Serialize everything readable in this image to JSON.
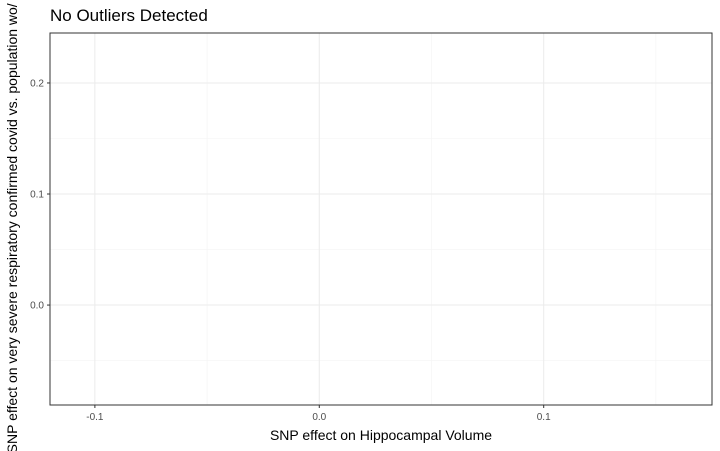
{
  "chart_data": {
    "type": "scatter",
    "title": "No Outliers Detected",
    "xlabel": "SNP effect on Hippocampal Volume",
    "ylabel": "SNP effect on very severe respiratory confirmed covid vs. population wo/ Ur",
    "xlim": [
      -0.12,
      0.175
    ],
    "ylim": [
      -0.09,
      0.245
    ],
    "x_ticks": [
      -0.1,
      0.0,
      0.1
    ],
    "x_tick_labels": [
      "-0.1",
      "0.0",
      "0.1"
    ],
    "y_ticks": [
      0.0,
      0.1,
      0.2
    ],
    "y_tick_labels": [
      "0.0",
      "0.1",
      "0.2"
    ],
    "grid": true,
    "legend": "none",
    "series": [
      {
        "x": [],
        "y": []
      }
    ]
  }
}
